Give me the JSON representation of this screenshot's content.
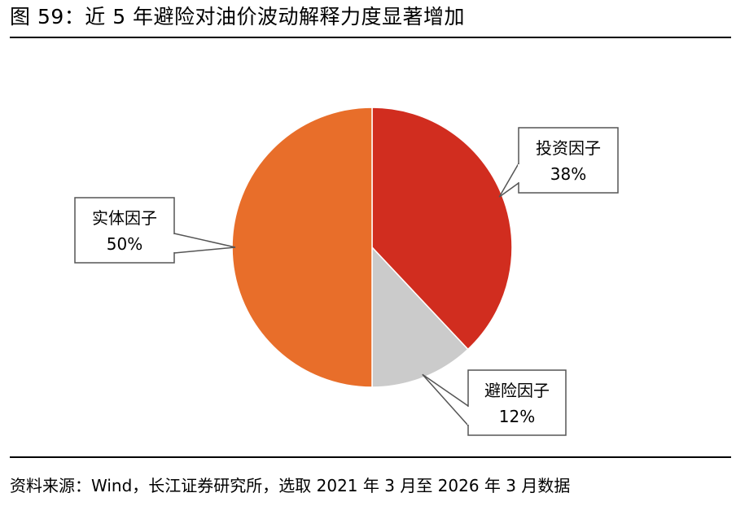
{
  "title": "图 59：近 5 年避险对油价波动解释力度显著增加",
  "source": "资料来源：Wind，长江证券研究所，选取 2021 年 3 月至 2026 年 3 月数据",
  "chart_data": {
    "type": "pie",
    "title": "",
    "slices": [
      {
        "name": "投资因子",
        "label": "38%",
        "value": 38,
        "color": "#D12D1F"
      },
      {
        "name": "避险因子",
        "label": "12%",
        "value": 12,
        "color": "#CBCBCB"
      },
      {
        "name": "实体因子",
        "label": "50%",
        "value": 50,
        "color": "#E86E2A"
      }
    ],
    "start_angle_deg": 0,
    "direction": "clockwise",
    "label_style": "callout boxes with name and percentage"
  }
}
